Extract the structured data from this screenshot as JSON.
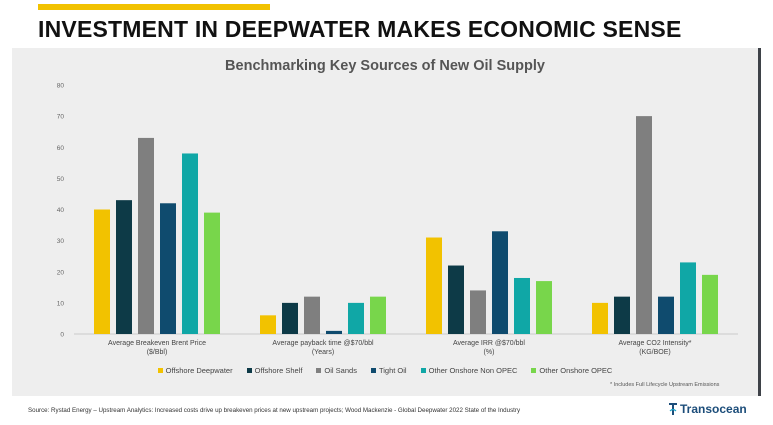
{
  "slide_title": "INVESTMENT IN DEEPWATER MAKES ECONOMIC SENSE",
  "source_note": "Source: Rystad Energy – Upstream Analytics: Increased costs drive up breakeven prices at new upstream projects; Wood Mackenzie - Global Deepwater 2022 State of the Industry",
  "footnote": "* Includes Full Lifecycle Upstream Emissions",
  "logo_text": "Transocean",
  "colors": {
    "accent_bar": "#f2c200",
    "series": [
      "#f2c200",
      "#0d3a47",
      "#7f7f7f",
      "#0f4b6e",
      "#10a7a6",
      "#78d64b"
    ]
  },
  "chart_data": {
    "type": "bar",
    "title": "Benchmarking Key Sources of New Oil Supply",
    "categories": [
      [
        "Average Breakeven Brent Price",
        "($/Bbl)"
      ],
      [
        "Average payback time @$70/bbl",
        "(Years)"
      ],
      [
        "Average IRR @$70/bbl",
        "(%)"
      ],
      [
        "Average CO2 Intensity*",
        "(KG/BOE)"
      ]
    ],
    "series": [
      {
        "name": "Offshore Deepwater",
        "values": [
          40,
          6,
          31,
          10
        ]
      },
      {
        "name": "Offshore Shelf",
        "values": [
          43,
          10,
          22,
          12
        ]
      },
      {
        "name": "Oil Sands",
        "values": [
          63,
          12,
          14,
          70
        ]
      },
      {
        "name": "Tight Oil",
        "values": [
          42,
          1,
          33,
          12
        ]
      },
      {
        "name": "Other Onshore Non OPEC",
        "values": [
          58,
          10,
          18,
          23
        ]
      },
      {
        "name": "Other Onshore OPEC",
        "values": [
          39,
          12,
          17,
          19
        ]
      }
    ],
    "ylim": [
      0,
      80
    ],
    "yticks": [
      0,
      10,
      20,
      30,
      40,
      50,
      60,
      70,
      80
    ],
    "grid": false,
    "legend_position": "bottom"
  }
}
